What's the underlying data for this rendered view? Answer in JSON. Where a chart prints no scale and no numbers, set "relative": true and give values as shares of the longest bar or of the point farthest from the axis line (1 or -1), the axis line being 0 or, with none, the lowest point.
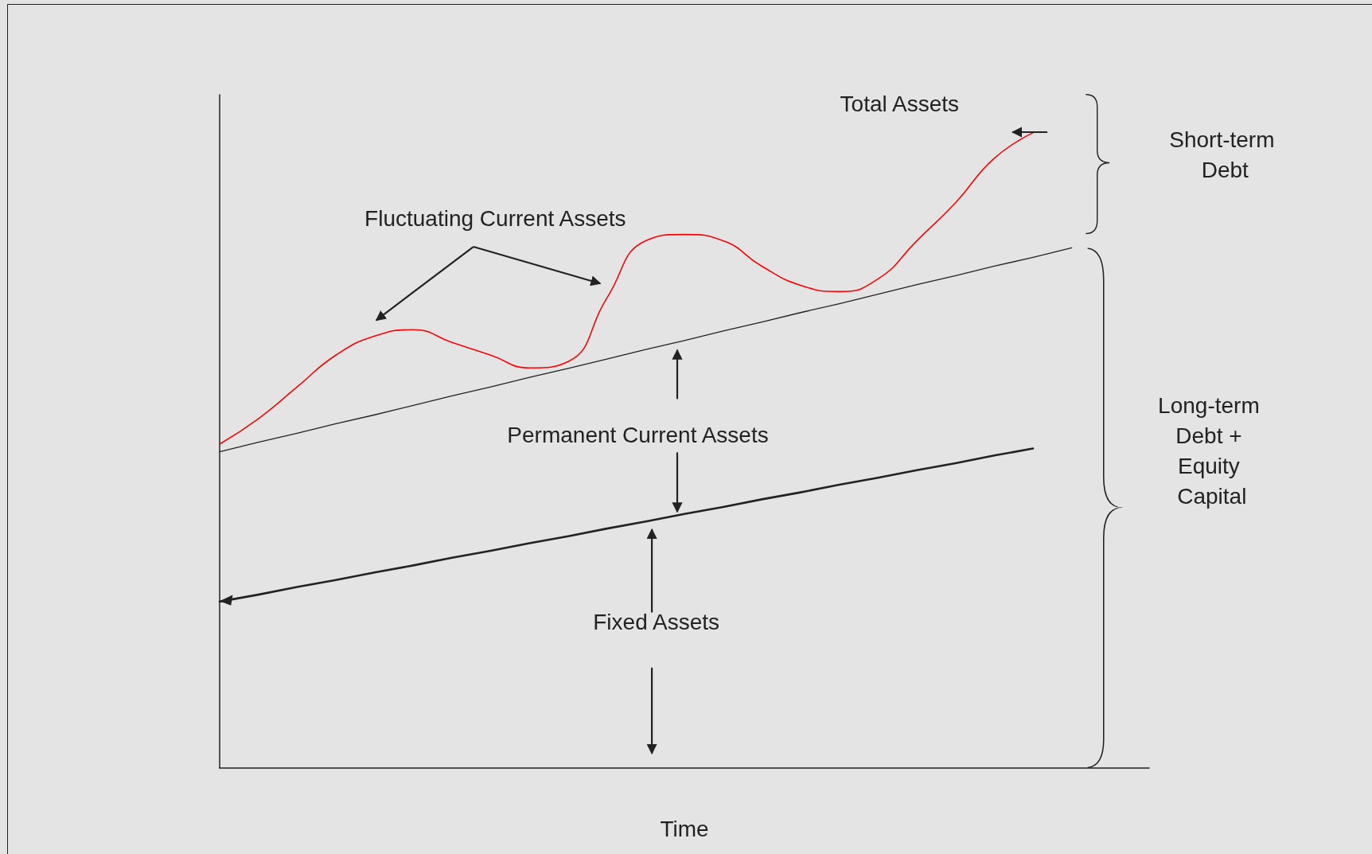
{
  "chart_data": {
    "type": "line",
    "relative": true,
    "xlabel": "Time",
    "marker": "none",
    "line_style": "solid",
    "categories": [
      null,
      null,
      null,
      null,
      null,
      null,
      null,
      null,
      null,
      null,
      null,
      null,
      null,
      null,
      null,
      null,
      null,
      null,
      null,
      null,
      null,
      null,
      null,
      null,
      null
    ],
    "series": [
      {
        "color": "#ff0000",
        "values": [
          0.51,
          0.55,
          0.6,
          0.65,
          0.68,
          0.69,
          0.67,
          0.65,
          0.63,
          0.64,
          0.74,
          0.83,
          0.84,
          0.83,
          0.79,
          0.76,
          0.75,
          0.77,
          0.83,
          0.89,
          0.96,
          1.0,
          null,
          null,
          null
        ]
      },
      {
        "color": "#222222",
        "values": [
          0.498,
          0.513,
          0.527,
          0.542,
          0.556,
          0.571,
          0.586,
          0.6,
          0.615,
          0.629,
          0.644,
          0.659,
          0.673,
          0.688,
          0.702,
          0.717,
          0.731,
          0.746,
          0.761,
          0.775,
          0.79,
          0.804,
          0.819,
          null,
          null
        ]
      },
      {
        "color": "#222222",
        "values": [
          0.262,
          0.273,
          0.285,
          0.296,
          0.308,
          0.319,
          0.331,
          0.342,
          0.354,
          0.365,
          0.377,
          0.388,
          0.4,
          0.411,
          0.423,
          0.434,
          0.446,
          0.457,
          0.469,
          0.48,
          0.492,
          0.503,
          null,
          null,
          null
        ]
      }
    ],
    "annotations": [
      "Total Assets",
      "Fluctuating Current Assets",
      "Permanent Current Assets",
      "Fixed Assets",
      "Short-term Debt",
      "Long-term Debt + Equity Capital"
    ]
  }
}
